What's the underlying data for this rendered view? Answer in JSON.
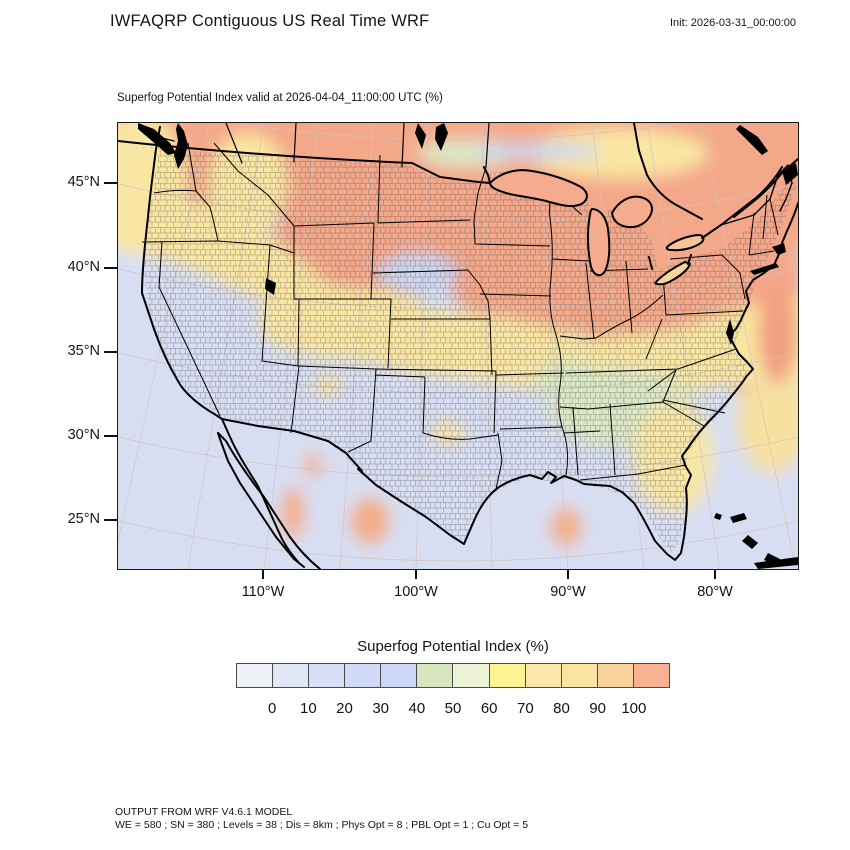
{
  "header": {
    "title": "IWFAQRP Contiguous US Real Time WRF",
    "init_label": "Init: 2026-03-31_00:00:00"
  },
  "map": {
    "subtitle": "Superfog Potential Index valid at 2026-04-04_11:00:00 UTC   (%)",
    "lat_ticks": [
      "45°N",
      "40°N",
      "35°N",
      "30°N",
      "25°N"
    ],
    "lon_ticks": [
      "110°W",
      "100°W",
      "90°W",
      "80°W"
    ]
  },
  "colorbar": {
    "title": "Superfog Potential Index  (%)",
    "tick_labels": [
      "0",
      "10",
      "20",
      "30",
      "40",
      "50",
      "60",
      "70",
      "80",
      "90",
      "100"
    ],
    "cell_colors": [
      "#eef2f7",
      "#e2e7f8",
      "#d6def8",
      "#d1daf8",
      "#cdd7f8",
      "#d7e4bd",
      "#edf3d7",
      "#fcf392",
      "#fce8a9",
      "#fbe3a1",
      "#fad29b",
      "#f8b291"
    ],
    "units": "%",
    "range": [
      0,
      110
    ],
    "interval": 10
  },
  "footer": {
    "line1": "OUTPUT FROM WRF V4.6.1 MODEL",
    "line2": "WE = 580 ; SN = 380 ; Levels = 38 ; Dis = 8km ; Phys Opt = 8 ; PBL Opt = 1 ; Cu Opt = 5"
  }
}
